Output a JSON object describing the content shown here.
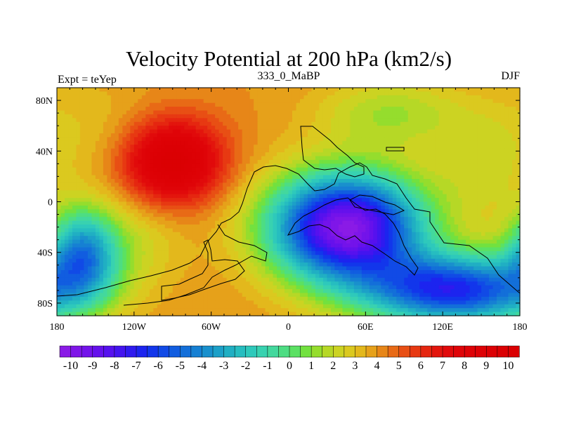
{
  "chart_data": {
    "type": "heatmap",
    "title": "Velocity Potential at 200 hPa (km2/s)",
    "subtitle": "333_0_MaBP",
    "left_label": "Expt = teYep",
    "right_label": "DJF",
    "xlim": [
      -180,
      180
    ],
    "ylim": [
      -90,
      90
    ],
    "x_ticks": [
      {
        "value": -180,
        "label": "180"
      },
      {
        "value": -120,
        "label": "120W"
      },
      {
        "value": -60,
        "label": "60W"
      },
      {
        "value": 0,
        "label": "0"
      },
      {
        "value": 60,
        "label": "60E"
      },
      {
        "value": 120,
        "label": "120E"
      },
      {
        "value": 180,
        "label": "180"
      }
    ],
    "y_ticks": [
      {
        "value": 80,
        "label": "80N"
      },
      {
        "value": 40,
        "label": "40N"
      },
      {
        "value": 0,
        "label": "0"
      },
      {
        "value": -40,
        "label": "40S"
      },
      {
        "value": -80,
        "label": "80S"
      }
    ],
    "colorbar": {
      "min": -10.5,
      "max": 10.5,
      "step": 0.5,
      "labels": [
        "-10",
        "-9",
        "-8",
        "-7",
        "-6",
        "-5",
        "-4",
        "-3",
        "-2",
        "-1",
        "0",
        "1",
        "2",
        "3",
        "4",
        "5",
        "6",
        "7",
        "8",
        "9",
        "10"
      ],
      "colors": [
        "#8a1be6",
        "#7f16e8",
        "#7313ea",
        "#6511ec",
        "#5611ee",
        "#4314ef",
        "#2f1aef",
        "#1c24ef",
        "#1236eb",
        "#114ae6",
        "#115de0",
        "#136fd9",
        "#1680d3",
        "#1990cd",
        "#1ca0c8",
        "#20afc3",
        "#26bdc0",
        "#2ec9bb",
        "#38d2b0",
        "#43d89d",
        "#4ddd83",
        "#5be163",
        "#72e13f",
        "#95dd2d",
        "#b6d826",
        "#ccd322",
        "#dbc91f",
        "#e3b81c",
        "#e6a11a",
        "#e78618",
        "#e86a16",
        "#e84f14",
        "#e73912",
        "#e52610",
        "#e3150d",
        "#e10a0b",
        "#df0408",
        "#de0206",
        "#dd0105",
        "#dc0004",
        "#db0003",
        "#da0002"
      ]
    },
    "centers": [
      {
        "lon": -90,
        "lat": 32,
        "value": 10.2,
        "sx": 28,
        "sy": 24
      },
      {
        "lon": -150,
        "lat": 55,
        "value": 3.0,
        "sx": 40,
        "sy": 30
      },
      {
        "lon": -115,
        "lat": -30,
        "value": 2.5,
        "sx": 25,
        "sy": 25
      },
      {
        "lon": 45,
        "lat": -20,
        "value": -10.1,
        "sx": 42,
        "sy": 30
      },
      {
        "lon": 130,
        "lat": -70,
        "value": -6.5,
        "sx": 50,
        "sy": 20
      },
      {
        "lon": -160,
        "lat": -40,
        "value": -3.5,
        "sx": 20,
        "sy": 25
      },
      {
        "lon": 150,
        "lat": 30,
        "value": 2.5,
        "sx": 25,
        "sy": 30
      },
      {
        "lon": 80,
        "lat": 70,
        "value": 1.5,
        "sx": 40,
        "sy": 20
      }
    ],
    "background_value": 4.0
  }
}
